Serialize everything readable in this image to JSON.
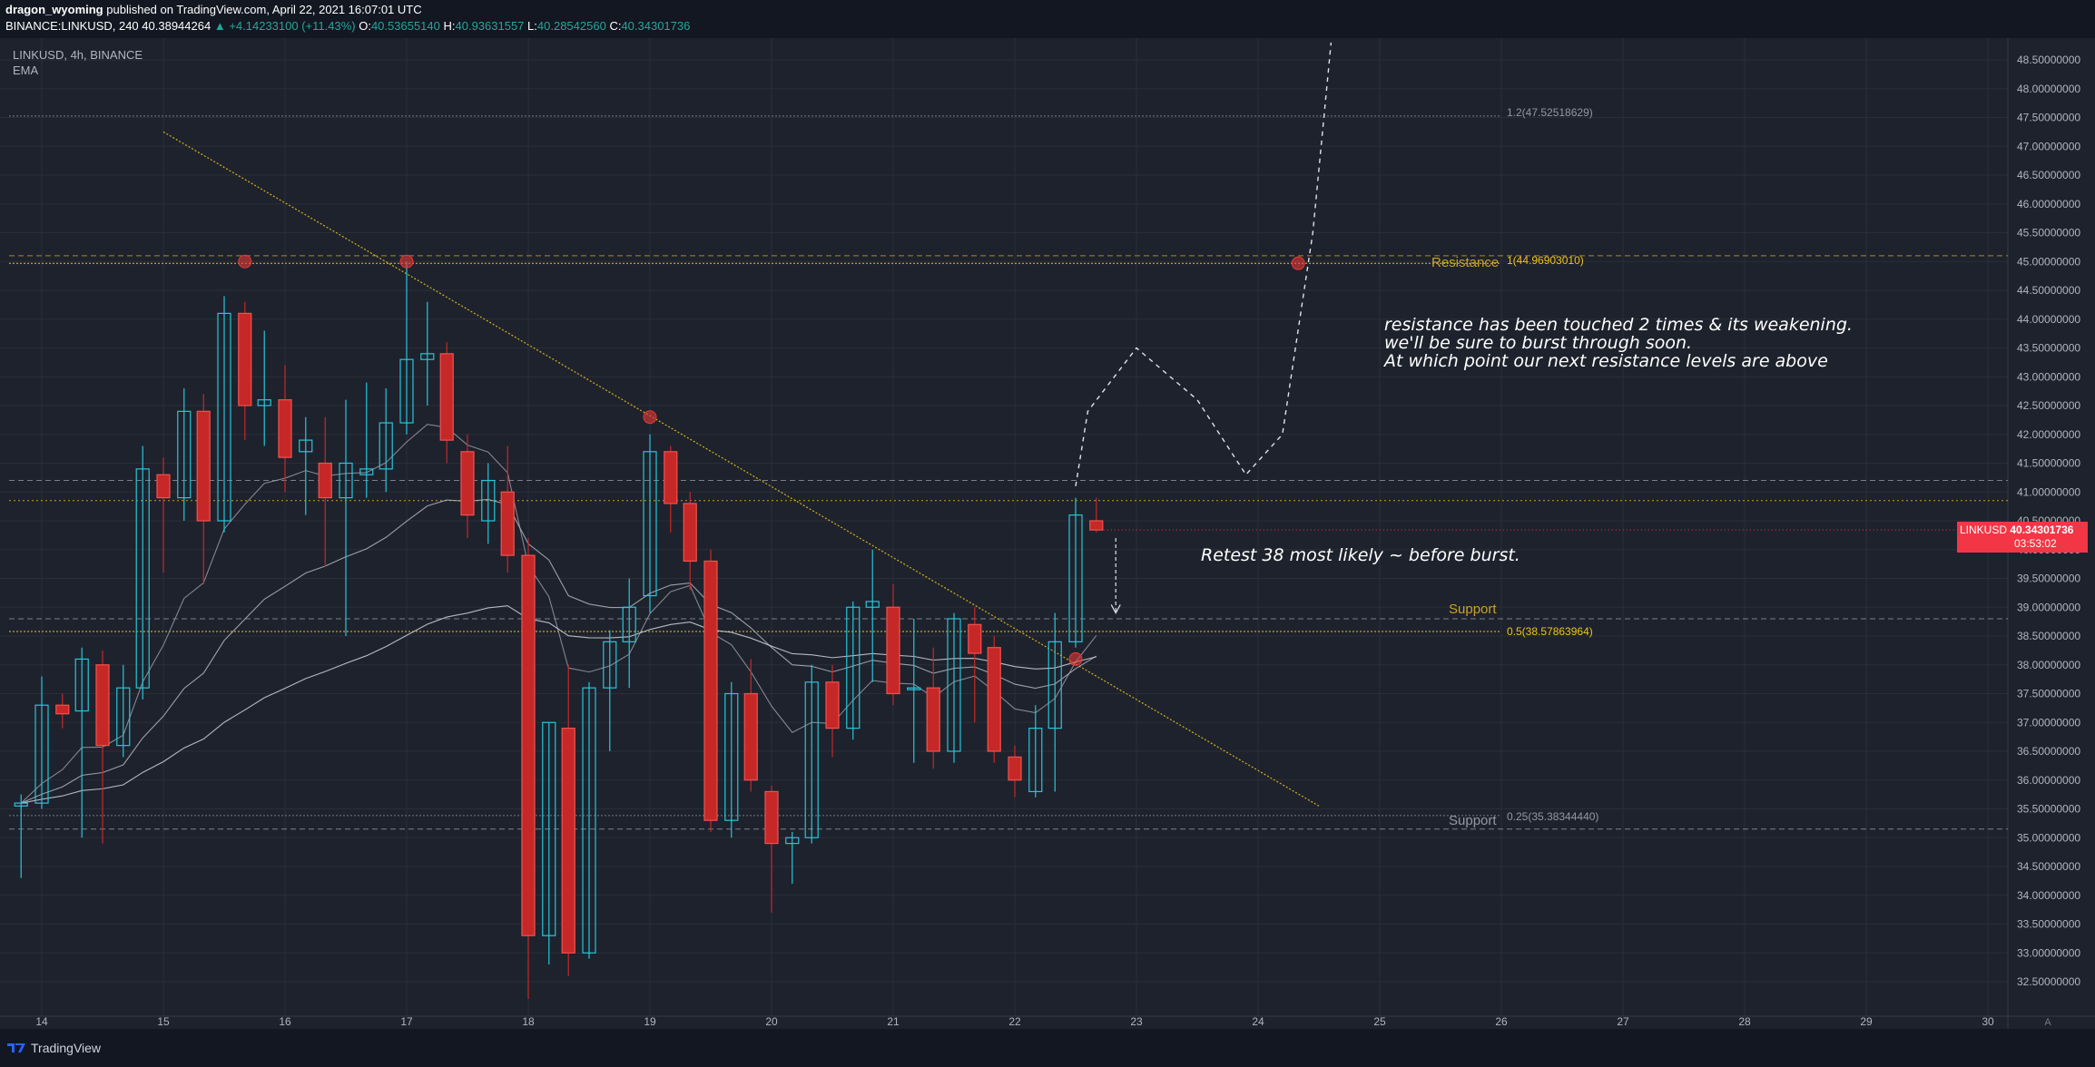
{
  "header": {
    "author": "dragon_wyoming",
    "published": "published on TradingView.com, April 22, 2021 16:07:01 UTC",
    "symbol": "BINANCE:LINKUSD, 240",
    "last": "40.38944264",
    "change": "▲ +4.14233100 (+11.43%)",
    "o_label": "O:",
    "o": "40.53655140",
    "h_label": "H:",
    "h": "40.93631557",
    "l_label": "L:",
    "l": "40.28542560",
    "c_label": "C:",
    "c": "40.34301736"
  },
  "legend": {
    "symbol": "LINKUSD, 4h, BINANCE",
    "indicator": "EMA"
  },
  "annotations": {
    "note1": [
      "resistance has been touched 2 times & its weakening.",
      "we'll be sure to burst through soon.",
      "At which point our next resistance levels are above"
    ],
    "note2": "Retest 38 most likely ~ before burst.",
    "resistance": "Resistance",
    "support1": "Support",
    "support2": "Support",
    "fib_12": "1.2(47.52518629)",
    "fib_1": "1(44.96903010)",
    "fib_05": "0.5(38.57863964)",
    "fib_025": "0.25(35.38344440)"
  },
  "price_tag": {
    "symbol": "LINKUSD",
    "price": "40.34301736",
    "countdown": "03:53:02"
  },
  "footer": {
    "brand": "TradingView"
  },
  "colors": {
    "bg": "#1e222d",
    "up": "#26c6da",
    "down": "#c62828",
    "fib": "#f0c419",
    "trend": "#d4b21a",
    "tag": "#f23645"
  },
  "chart_data": {
    "type": "candlestick",
    "interval": "4h",
    "x_ticks": [
      "14",
      "15",
      "16",
      "17",
      "18",
      "19",
      "20",
      "21",
      "22",
      "23",
      "24",
      "25",
      "26",
      "27",
      "28",
      "29",
      "30"
    ],
    "y_ticks": [
      "32.50000000",
      "33.00000000",
      "33.50000000",
      "34.00000000",
      "34.50000000",
      "35.00000000",
      "35.50000000",
      "36.00000000",
      "36.50000000",
      "37.00000000",
      "37.50000000",
      "38.00000000",
      "38.50000000",
      "39.00000000",
      "39.50000000",
      "40.00000000",
      "40.50000000",
      "41.00000000",
      "41.50000000",
      "42.00000000",
      "42.50000000",
      "43.00000000",
      "43.50000000",
      "44.00000000",
      "44.50000000",
      "45.00000000",
      "45.50000000",
      "46.00000000",
      "46.50000000",
      "47.00000000",
      "47.50000000",
      "48.00000000",
      "48.50000000"
    ],
    "ylim": [
      32.2,
      48.7
    ],
    "candles": [
      [
        13.83,
        35.55,
        35.75,
        34.3,
        35.6
      ],
      [
        14.0,
        35.6,
        37.8,
        35.5,
        37.3
      ],
      [
        14.17,
        37.3,
        37.5,
        36.9,
        37.15
      ],
      [
        14.33,
        37.2,
        38.3,
        35.0,
        38.1
      ],
      [
        14.5,
        38.0,
        38.25,
        34.9,
        36.6
      ],
      [
        14.67,
        36.6,
        38.0,
        36.4,
        37.6
      ],
      [
        14.83,
        37.6,
        41.8,
        37.4,
        41.4
      ],
      [
        15.0,
        41.3,
        41.6,
        39.6,
        40.9
      ],
      [
        15.17,
        40.9,
        42.8,
        40.5,
        42.4
      ],
      [
        15.33,
        42.4,
        42.7,
        39.4,
        40.5
      ],
      [
        15.5,
        40.5,
        44.4,
        40.3,
        44.1
      ],
      [
        15.67,
        44.1,
        44.3,
        41.9,
        42.5
      ],
      [
        15.83,
        42.5,
        43.8,
        41.8,
        42.6
      ],
      [
        16.0,
        42.6,
        43.2,
        41.0,
        41.6
      ],
      [
        16.17,
        41.7,
        42.3,
        40.6,
        41.9
      ],
      [
        16.33,
        41.5,
        42.3,
        39.7,
        40.9
      ],
      [
        16.5,
        40.9,
        42.6,
        38.5,
        41.5
      ],
      [
        16.67,
        41.3,
        42.9,
        40.9,
        41.4
      ],
      [
        16.83,
        41.4,
        42.8,
        41.0,
        42.2
      ],
      [
        17.0,
        42.2,
        45.0,
        42.0,
        43.3
      ],
      [
        17.17,
        43.3,
        44.3,
        42.5,
        43.4
      ],
      [
        17.33,
        43.4,
        43.6,
        41.5,
        41.9
      ],
      [
        17.5,
        41.7,
        42.0,
        40.2,
        40.6
      ],
      [
        17.67,
        40.5,
        41.5,
        40.1,
        41.2
      ],
      [
        17.83,
        41.0,
        41.8,
        39.6,
        39.9
      ],
      [
        18.0,
        39.9,
        40.2,
        32.2,
        33.3
      ],
      [
        18.17,
        33.3,
        37.0,
        32.8,
        37.0
      ],
      [
        18.33,
        36.9,
        38.0,
        32.6,
        33.0
      ],
      [
        18.5,
        33.0,
        37.7,
        32.9,
        37.6
      ],
      [
        18.67,
        37.6,
        38.6,
        36.5,
        38.4
      ],
      [
        18.83,
        38.4,
        39.5,
        37.6,
        39.0
      ],
      [
        19.0,
        39.2,
        42.0,
        38.9,
        41.7
      ],
      [
        19.17,
        41.7,
        41.8,
        40.3,
        40.8
      ],
      [
        19.33,
        40.8,
        41.0,
        39.3,
        39.8
      ],
      [
        19.5,
        39.8,
        40.0,
        35.1,
        35.3
      ],
      [
        19.67,
        35.3,
        37.7,
        35.0,
        37.5
      ],
      [
        19.83,
        37.5,
        38.1,
        35.8,
        36.0
      ],
      [
        20.0,
        35.8,
        35.9,
        33.7,
        34.9
      ],
      [
        20.17,
        34.9,
        35.1,
        34.2,
        35.0
      ],
      [
        20.33,
        35.0,
        38.0,
        34.9,
        37.7
      ],
      [
        20.5,
        37.7,
        38.0,
        36.4,
        36.9
      ],
      [
        20.67,
        36.9,
        39.1,
        36.7,
        39.0
      ],
      [
        20.83,
        39.0,
        40.0,
        37.7,
        39.1
      ],
      [
        21.0,
        39.0,
        39.4,
        37.3,
        37.5
      ],
      [
        21.17,
        37.6,
        38.8,
        36.3,
        37.6
      ],
      [
        21.33,
        37.6,
        38.3,
        36.2,
        36.5
      ],
      [
        21.5,
        36.5,
        38.9,
        36.3,
        38.8
      ],
      [
        21.67,
        38.7,
        39.0,
        37.0,
        38.2
      ],
      [
        21.83,
        38.3,
        38.5,
        36.3,
        36.5
      ],
      [
        22.0,
        36.4,
        36.6,
        35.7,
        36.0
      ],
      [
        22.17,
        35.8,
        37.3,
        35.7,
        36.9
      ],
      [
        22.33,
        36.9,
        38.9,
        35.8,
        38.4
      ],
      [
        22.5,
        38.4,
        40.9,
        38.3,
        40.6
      ],
      [
        22.67,
        40.5,
        40.9,
        40.3,
        40.34
      ]
    ],
    "fib_levels": [
      {
        "ratio": "1.2",
        "price": 47.52518629
      },
      {
        "ratio": "1",
        "price": 44.9690301
      },
      {
        "ratio": "0.5",
        "price": 38.57863964
      },
      {
        "ratio": "0.25",
        "price": 35.3834444
      }
    ],
    "current_price": 40.34301736
  }
}
